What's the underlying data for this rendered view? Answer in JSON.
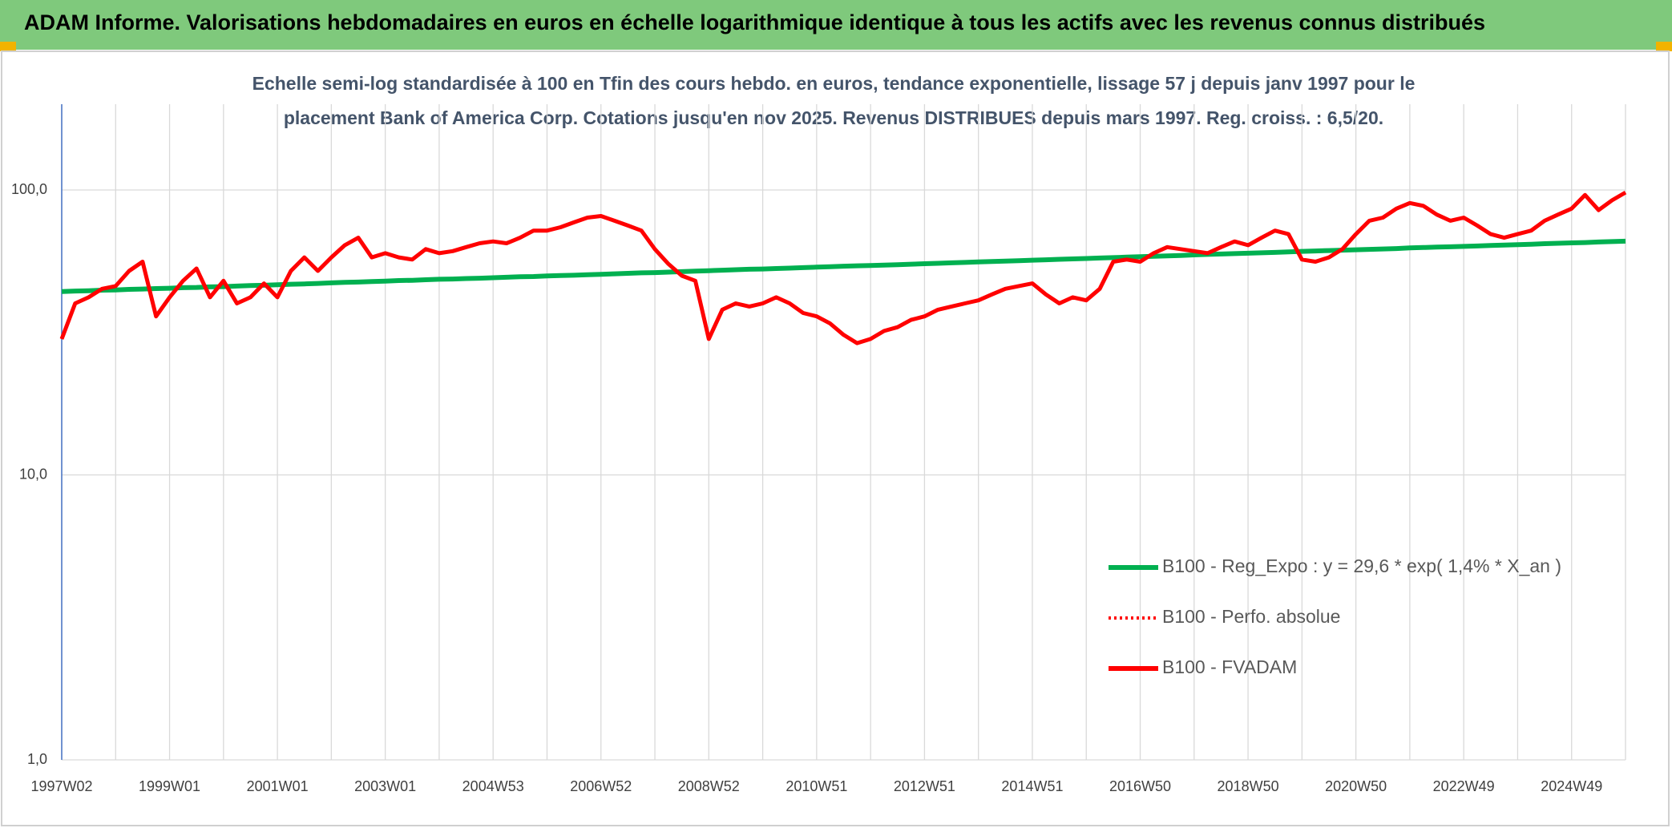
{
  "chart_data": {
    "type": "line",
    "title": "ADAM Informe. Valorisations hebdomadaires en euros en échelle logarithmique identique à tous les actifs avec les revenus connus distribués",
    "subtitle": [
      "Echelle semi-log standardisée à 100 en Tfin des cours hebdo. en euros, tendance exponentielle, lissage 57 j depuis janv 1997 pour le",
      "placement Bank of America Corp. Cotations jusqu'en nov 2025. Revenus DISTRIBUES depuis mars 1997. Reg. croiss. : 6,5/20."
    ],
    "categories": [
      "1997W02",
      null,
      null,
      null,
      null,
      null,
      null,
      null,
      "1999W01",
      null,
      null,
      null,
      null,
      null,
      null,
      null,
      "2001W01",
      null,
      null,
      null,
      null,
      null,
      null,
      null,
      "2003W01",
      null,
      null,
      null,
      null,
      null,
      null,
      null,
      "2004W53",
      null,
      null,
      null,
      null,
      null,
      null,
      null,
      "2006W52",
      null,
      null,
      null,
      null,
      null,
      null,
      null,
      "2008W52",
      null,
      null,
      null,
      null,
      null,
      null,
      null,
      "2010W51",
      null,
      null,
      null,
      null,
      null,
      null,
      null,
      "2012W51",
      null,
      null,
      null,
      null,
      null,
      null,
      null,
      "2014W51",
      null,
      null,
      null,
      null,
      null,
      null,
      null,
      "2016W50",
      null,
      null,
      null,
      null,
      null,
      null,
      null,
      "2018W50",
      null,
      null,
      null,
      null,
      null,
      null,
      null,
      "2020W50",
      null,
      null,
      null,
      null,
      null,
      null,
      null,
      "2022W49",
      null,
      null,
      null,
      null,
      null,
      null,
      null,
      "2024W49",
      null,
      null,
      null,
      null
    ],
    "series": [
      {
        "name": "B100 - Reg_Expo : y = 29,6 * exp( 1,4% *  X_an )",
        "color": "#00b050",
        "style": "solid",
        "values": [
          44.0,
          44.2,
          44.3,
          44.5,
          44.6,
          44.8,
          44.9,
          45.1,
          45.2,
          45.4,
          45.5,
          45.7,
          45.8,
          46.0,
          46.2,
          46.3,
          46.5,
          46.7,
          46.8,
          47.0,
          47.2,
          47.4,
          47.5,
          47.7,
          47.9,
          48.1,
          48.2,
          48.4,
          48.6,
          48.7,
          48.9,
          49.0,
          49.2,
          49.4,
          49.6,
          49.7,
          49.9,
          50.1,
          50.2,
          50.4,
          50.6,
          50.8,
          51.0,
          51.2,
          51.3,
          51.5,
          51.7,
          51.9,
          52.1,
          52.3,
          52.5,
          52.7,
          52.8,
          53.0,
          53.2,
          53.4,
          53.6,
          53.8,
          54.0,
          54.2,
          54.3,
          54.5,
          54.7,
          54.9,
          55.1,
          55.3,
          55.5,
          55.7,
          55.9,
          56.1,
          56.3,
          56.5,
          56.7,
          56.9,
          57.1,
          57.3,
          57.5,
          57.7,
          57.9,
          58.1,
          58.3,
          58.5,
          58.7,
          58.9,
          59.2,
          59.4,
          59.6,
          59.8,
          60.0,
          60.2,
          60.4,
          60.6,
          60.9,
          61.1,
          61.3,
          61.5,
          61.7,
          61.9,
          62.1,
          62.3,
          62.6,
          62.8,
          63.0,
          63.2,
          63.4,
          63.6,
          63.9,
          64.1,
          64.3,
          64.5,
          64.8,
          65.0,
          65.2,
          65.4,
          65.7,
          65.9,
          66.1
        ]
      },
      {
        "name": "B100 - Perfo. absolue",
        "color": "#ff0000",
        "style": "dotted",
        "values": [
          30,
          40,
          42,
          45,
          46,
          52,
          56,
          36,
          42,
          48,
          53,
          42,
          48,
          40,
          42,
          47,
          42,
          52,
          58,
          52,
          58,
          64,
          68,
          58,
          60,
          58,
          57,
          62,
          60,
          61,
          63,
          65,
          66,
          65,
          68,
          72,
          72,
          74,
          77,
          80,
          81,
          78,
          75,
          72,
          62,
          55,
          50,
          48,
          30,
          38,
          40,
          39,
          40,
          42,
          40,
          37,
          36,
          34,
          31,
          29,
          30,
          32,
          33,
          35,
          36,
          38,
          39,
          40,
          41,
          43,
          45,
          46,
          47,
          43,
          40,
          42,
          41,
          45,
          56,
          57,
          56,
          60,
          63,
          62,
          61,
          60,
          63,
          66,
          64,
          68,
          72,
          70,
          57,
          56,
          58,
          62,
          70,
          78,
          80,
          86,
          90,
          88,
          82,
          78,
          80,
          75,
          70,
          68,
          70,
          72,
          78,
          82,
          86,
          96,
          85,
          92,
          98
        ]
      },
      {
        "name": "B100 - FVADAM",
        "color": "#ff0000",
        "style": "solid",
        "values": [
          30,
          40,
          42,
          45,
          46,
          52,
          56,
          36,
          42,
          48,
          53,
          42,
          48,
          40,
          42,
          47,
          42,
          52,
          58,
          52,
          58,
          64,
          68,
          58,
          60,
          58,
          57,
          62,
          60,
          61,
          63,
          65,
          66,
          65,
          68,
          72,
          72,
          74,
          77,
          80,
          81,
          78,
          75,
          72,
          62,
          55,
          50,
          48,
          30,
          38,
          40,
          39,
          40,
          42,
          40,
          37,
          36,
          34,
          31,
          29,
          30,
          32,
          33,
          35,
          36,
          38,
          39,
          40,
          41,
          43,
          45,
          46,
          47,
          43,
          40,
          42,
          41,
          45,
          56,
          57,
          56,
          60,
          63,
          62,
          61,
          60,
          63,
          66,
          64,
          68,
          72,
          70,
          57,
          56,
          58,
          62,
          70,
          78,
          80,
          86,
          90,
          88,
          82,
          78,
          80,
          75,
          70,
          68,
          70,
          72,
          78,
          82,
          86,
          96,
          85,
          92,
          98
        ]
      }
    ],
    "ylim": [
      1,
      200
    ],
    "log_scale": true,
    "grid": true,
    "yticks": [
      {
        "value": 1,
        "label": "1,0"
      },
      {
        "value": 10,
        "label": "10,0"
      },
      {
        "value": 100,
        "label": "100,0"
      }
    ]
  }
}
